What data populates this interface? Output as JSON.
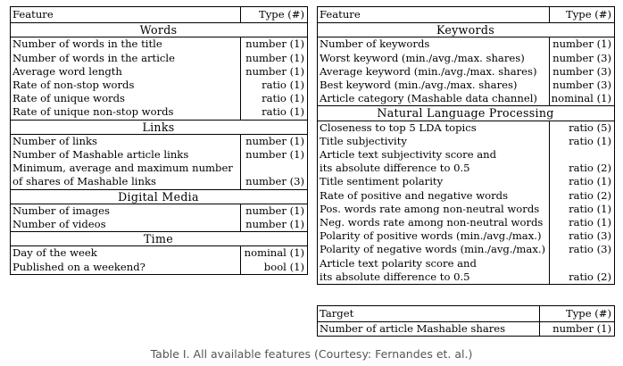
{
  "left": {
    "header": {
      "feature": "Feature",
      "type": "Type (#)"
    },
    "sections": [
      {
        "title": "Words",
        "rows": [
          [
            "Number of words in the title",
            "number (1)"
          ],
          [
            "Number of words in the article",
            "number (1)"
          ],
          [
            "Average word length",
            "number (1)"
          ],
          [
            "Rate of non-stop words",
            "ratio (1)"
          ],
          [
            "Rate of unique words",
            "ratio (1)"
          ],
          [
            "Rate of unique non-stop words",
            "ratio (1)"
          ]
        ]
      },
      {
        "title": "Links",
        "rows": [
          [
            "Number of links",
            "number (1)"
          ],
          [
            "Number of Mashable article links",
            "number (1)"
          ],
          [
            "Minimum, average and maximum number",
            ""
          ],
          [
            "of shares of Mashable links",
            "number (3)"
          ]
        ]
      },
      {
        "title": "Digital Media",
        "rows": [
          [
            "Number of images",
            "number (1)"
          ],
          [
            "Number of videos",
            "number (1)"
          ]
        ]
      },
      {
        "title": "Time",
        "rows": [
          [
            "Day of the week",
            "nominal (1)"
          ],
          [
            "Published on a weekend?",
            "bool (1)"
          ]
        ]
      }
    ]
  },
  "right": {
    "header": {
      "feature": "Feature",
      "type": "Type (#)"
    },
    "sections": [
      {
        "title": "Keywords",
        "rows": [
          [
            "Number of keywords",
            "number (1)"
          ],
          [
            "Worst keyword (min./avg./max. shares)",
            "number (3)"
          ],
          [
            "Average keyword (min./avg./max. shares)",
            "number (3)"
          ],
          [
            "Best keyword (min./avg./max. shares)",
            "number (3)"
          ],
          [
            "Article category (Mashable data channel)",
            "nominal (1)"
          ]
        ]
      },
      {
        "title": "Natural Language Processing",
        "rows": [
          [
            "Closeness to top 5 LDA topics",
            "ratio (5)"
          ],
          [
            "Title subjectivity",
            "ratio (1)"
          ],
          [
            "Article text subjectivity score and",
            ""
          ],
          [
            "its absolute difference to 0.5",
            "ratio (2)"
          ],
          [
            "Title sentiment polarity",
            "ratio (1)"
          ],
          [
            "Rate of positive and negative words",
            "ratio (2)"
          ],
          [
            "Pos. words rate among non-neutral words",
            "ratio (1)"
          ],
          [
            "Neg. words rate among non-neutral words",
            "ratio (1)"
          ],
          [
            "Polarity of positive words (min./avg./max.)",
            "ratio (3)"
          ],
          [
            "Polarity of negative words (min./avg./max.)",
            "ratio (3)"
          ],
          [
            "Article text polarity score and",
            ""
          ],
          [
            "its absolute difference to 0.5",
            "ratio (2)"
          ]
        ]
      }
    ]
  },
  "target": {
    "header": {
      "feature": "Target",
      "type": "Type (#)"
    },
    "rows": [
      [
        "Number of article Mashable shares",
        "number (1)"
      ]
    ]
  },
  "caption": "Table I. All available features (Courtesy: Fernandes et. al.)"
}
